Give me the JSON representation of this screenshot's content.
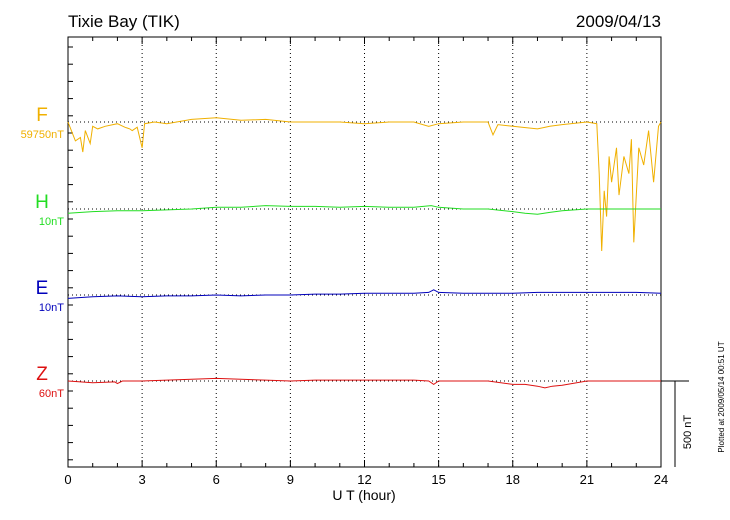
{
  "chart_data": {
    "type": "line",
    "title_left": "Tixie Bay (TIK)",
    "title_right": "2009/04/13",
    "xlabel": "U T (hour)",
    "xlim": [
      0,
      24
    ],
    "xticks": [
      "0",
      "3",
      "6",
      "9",
      "12",
      "15",
      "18",
      "21",
      "24"
    ],
    "grid": "vertical dotted every 3 hours",
    "scale_bar": "500 nT",
    "scale_value_nT": 500,
    "plotted_note": "Plotted at 2009/05/14 00:51 UT",
    "series": [
      {
        "name": "F",
        "baseline": "59750nT",
        "color": "#f0b000",
        "points": [
          [
            0,
            0
          ],
          [
            0.3,
            22
          ],
          [
            0.5,
            18
          ],
          [
            0.6,
            35
          ],
          [
            0.7,
            10
          ],
          [
            0.9,
            25
          ],
          [
            1.0,
            5
          ],
          [
            1.2,
            8
          ],
          [
            1.5,
            5
          ],
          [
            2.0,
            2
          ],
          [
            2.3,
            6
          ],
          [
            2.5,
            8
          ],
          [
            2.6,
            10
          ],
          [
            2.8,
            6
          ],
          [
            3.0,
            30
          ],
          [
            3.1,
            2
          ],
          [
            3.5,
            0
          ],
          [
            4.0,
            2
          ],
          [
            5.0,
            -3
          ],
          [
            6.0,
            -5
          ],
          [
            7.0,
            -2
          ],
          [
            8.0,
            -3
          ],
          [
            9.0,
            0
          ],
          [
            10.0,
            0
          ],
          [
            11.0,
            0
          ],
          [
            12.0,
            2
          ],
          [
            13.0,
            0
          ],
          [
            14.0,
            0
          ],
          [
            14.6,
            5
          ],
          [
            15.0,
            2
          ],
          [
            16.0,
            0
          ],
          [
            17.0,
            0
          ],
          [
            17.2,
            15
          ],
          [
            17.4,
            3
          ],
          [
            18.0,
            5
          ],
          [
            19.0,
            8
          ],
          [
            19.5,
            5
          ],
          [
            20.0,
            3
          ],
          [
            21.0,
            0
          ],
          [
            21.4,
            2
          ],
          [
            21.5,
            60
          ],
          [
            21.6,
            150
          ],
          [
            21.7,
            80
          ],
          [
            21.8,
            110
          ],
          [
            21.9,
            40
          ],
          [
            22.0,
            70
          ],
          [
            22.2,
            30
          ],
          [
            22.3,
            85
          ],
          [
            22.5,
            40
          ],
          [
            22.7,
            60
          ],
          [
            22.8,
            20
          ],
          [
            22.9,
            140
          ],
          [
            23.1,
            30
          ],
          [
            23.3,
            50
          ],
          [
            23.5,
            10
          ],
          [
            23.7,
            70
          ],
          [
            23.9,
            5
          ],
          [
            24.0,
            0
          ]
        ]
      },
      {
        "name": "H",
        "baseline": "10nT",
        "color": "#22dd22",
        "points": [
          [
            0,
            5
          ],
          [
            1,
            3
          ],
          [
            2,
            2
          ],
          [
            3,
            2
          ],
          [
            4,
            1
          ],
          [
            5,
            0
          ],
          [
            6,
            -2
          ],
          [
            7,
            -2
          ],
          [
            8,
            -4
          ],
          [
            9,
            -3
          ],
          [
            10,
            -3
          ],
          [
            11,
            -2
          ],
          [
            12,
            -3
          ],
          [
            13,
            -2
          ],
          [
            14,
            -2
          ],
          [
            14.7,
            -4
          ],
          [
            15,
            -2
          ],
          [
            16,
            0
          ],
          [
            17,
            0
          ],
          [
            18,
            3
          ],
          [
            18.5,
            5
          ],
          [
            19,
            6
          ],
          [
            19.5,
            4
          ],
          [
            20,
            2
          ],
          [
            21,
            0
          ],
          [
            22,
            0
          ],
          [
            23,
            0
          ],
          [
            24,
            0
          ]
        ]
      },
      {
        "name": "E",
        "baseline": "10nT",
        "color": "#0000bb",
        "points": [
          [
            0,
            4
          ],
          [
            1,
            2
          ],
          [
            2,
            1
          ],
          [
            3,
            2
          ],
          [
            4,
            1
          ],
          [
            5,
            1
          ],
          [
            6,
            0
          ],
          [
            7,
            1
          ],
          [
            8,
            0
          ],
          [
            9,
            0
          ],
          [
            10,
            -1
          ],
          [
            11,
            -1
          ],
          [
            12,
            -2
          ],
          [
            13,
            -2
          ],
          [
            14,
            -2
          ],
          [
            14.6,
            -3
          ],
          [
            14.8,
            -6
          ],
          [
            15,
            -3
          ],
          [
            16,
            -2
          ],
          [
            17,
            -2
          ],
          [
            18,
            -2
          ],
          [
            19,
            -3
          ],
          [
            20,
            -3
          ],
          [
            21,
            -3
          ],
          [
            22,
            -3
          ],
          [
            23,
            -3
          ],
          [
            24,
            -2
          ]
        ]
      },
      {
        "name": "Z",
        "baseline": "60nT",
        "color": "#dd1111",
        "points": [
          [
            0,
            0
          ],
          [
            1,
            2
          ],
          [
            1.9,
            1
          ],
          [
            2.0,
            3
          ],
          [
            2.2,
            0
          ],
          [
            3,
            0
          ],
          [
            4,
            -1
          ],
          [
            5,
            -2
          ],
          [
            6,
            -3
          ],
          [
            7,
            -2
          ],
          [
            8,
            -1
          ],
          [
            9,
            0
          ],
          [
            10,
            -1
          ],
          [
            11,
            -1
          ],
          [
            12,
            -1
          ],
          [
            13,
            -1
          ],
          [
            14,
            -1
          ],
          [
            14.6,
            0
          ],
          [
            14.8,
            4
          ],
          [
            15,
            0
          ],
          [
            16,
            0
          ],
          [
            17,
            0
          ],
          [
            18,
            4
          ],
          [
            18.5,
            4
          ],
          [
            19,
            6
          ],
          [
            19.3,
            8
          ],
          [
            19.6,
            6
          ],
          [
            20,
            5
          ],
          [
            21,
            0
          ],
          [
            22,
            0
          ],
          [
            23,
            0
          ],
          [
            24,
            0
          ]
        ]
      }
    ]
  }
}
